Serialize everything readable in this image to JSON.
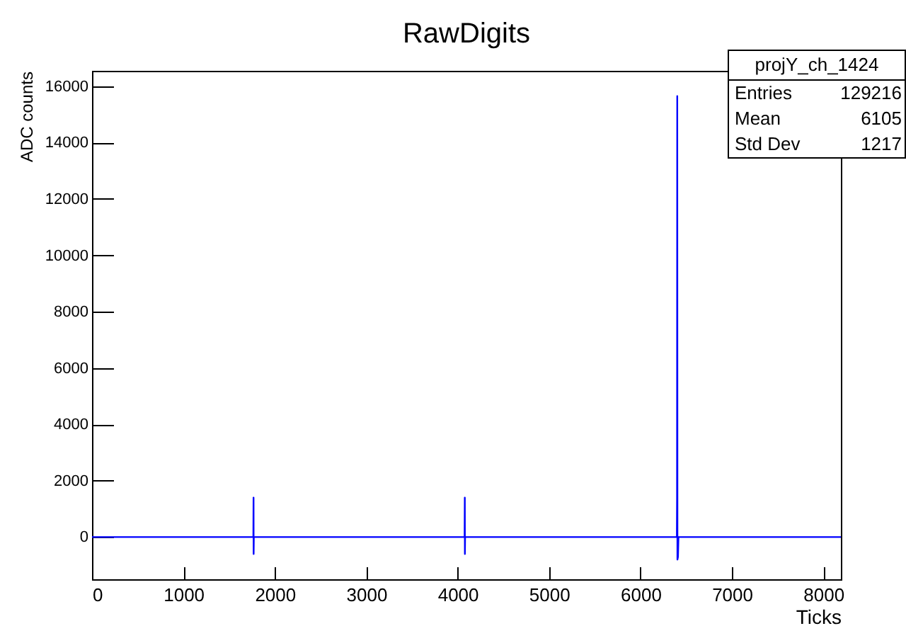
{
  "chart_data": {
    "type": "line",
    "title": "RawDigits",
    "xlabel": "Ticks",
    "ylabel": "ADC counts",
    "x": [
      0,
      1765,
      1767,
      1768,
      1770,
      4076,
      4078,
      4079,
      4081,
      6398,
      6400,
      6402,
      6404,
      6410,
      6415,
      8192
    ],
    "series": [
      {
        "color": "#0000ff",
        "values": [
          0,
          0,
          1400,
          -600,
          0,
          0,
          1400,
          -600,
          0,
          0,
          1400,
          15650,
          -800,
          -700,
          0,
          0
        ]
      }
    ],
    "xlim": [
      0,
      8192
    ],
    "ylim": [
      -1500,
      16550
    ],
    "xticks": [
      0,
      1000,
      2000,
      3000,
      4000,
      5000,
      6000,
      7000,
      8000
    ],
    "yticks": [
      0,
      2000,
      4000,
      6000,
      8000,
      10000,
      12000,
      14000,
      16000
    ],
    "annotations": [
      "projY_ch_1424",
      "Entries 129216",
      "Mean 6105",
      "Std Dev 1217"
    ]
  }
}
